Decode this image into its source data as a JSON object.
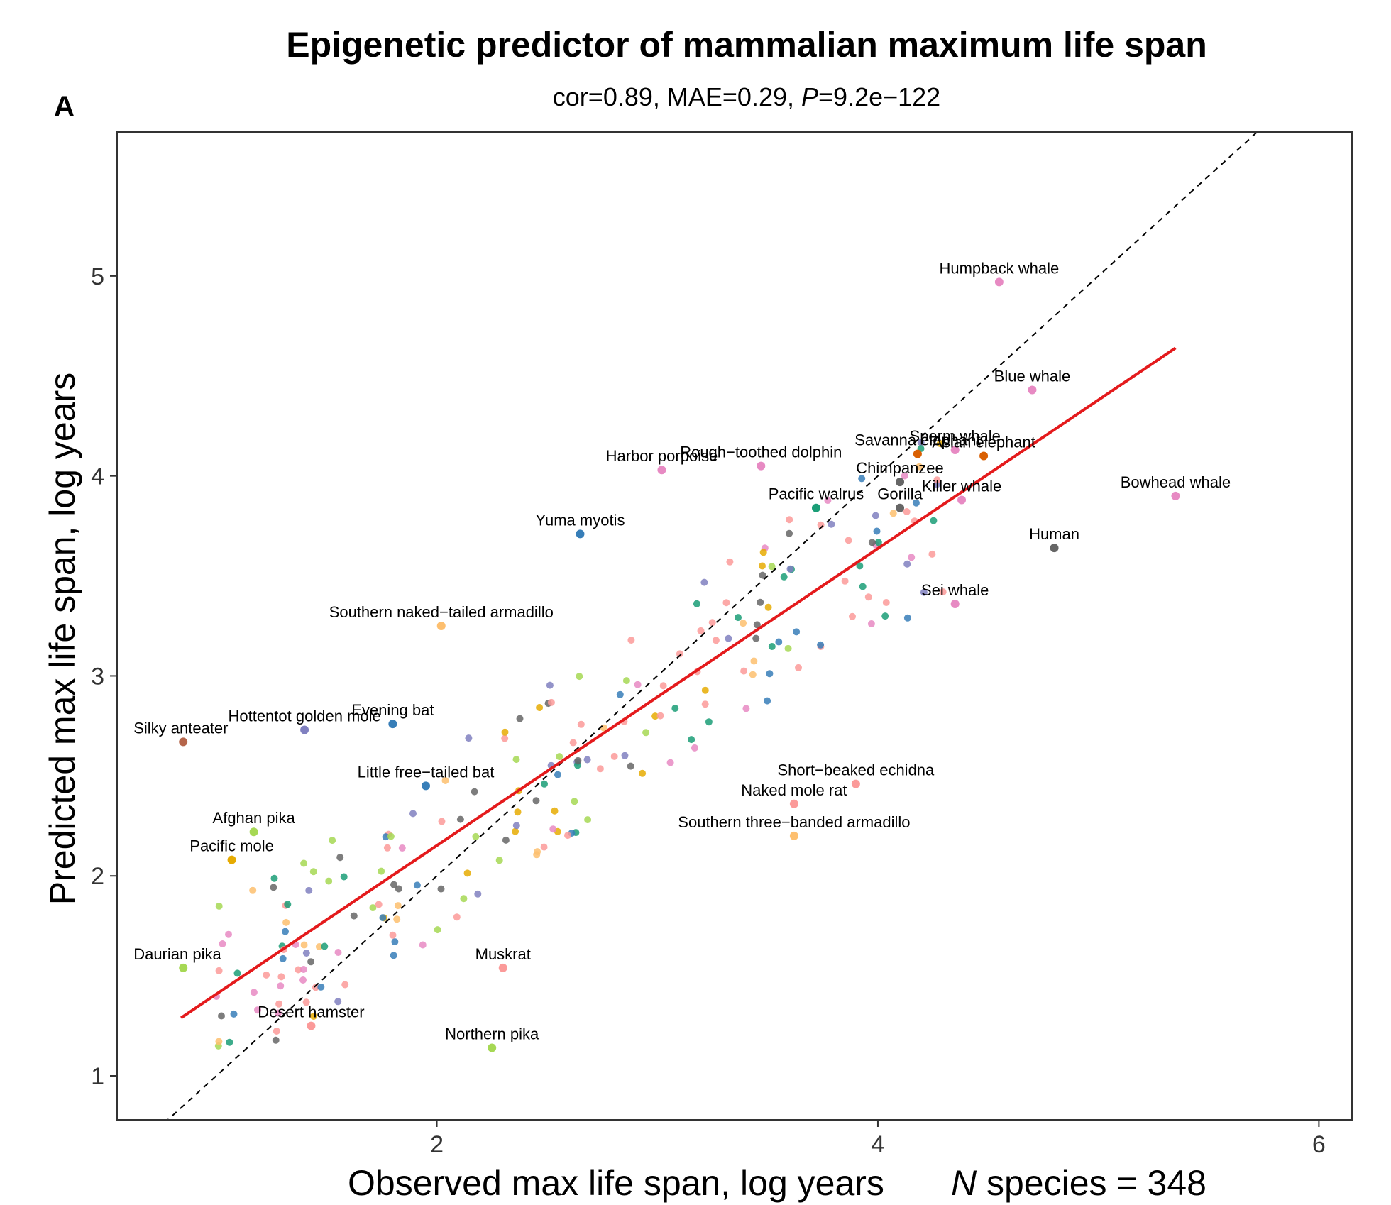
{
  "panel_label": "A",
  "chart_data": {
    "type": "scatter",
    "title": "Epigenetic predictor of mammalian maximum life span",
    "subtitle": {
      "cor_label": "cor=0.89, MAE=0.29, ",
      "p_symbol": "P",
      "p_value": "=9.2e−122"
    },
    "xlabel": "Observed max life span, log years",
    "ylabel": "Predicted max life span, log years",
    "n_species": {
      "symbol": "N",
      "text": " species = 348"
    },
    "xlim": [
      0.55,
      6.15
    ],
    "ylim": [
      0.78,
      5.72
    ],
    "x_ticks": [
      2,
      4,
      6
    ],
    "y_ticks": [
      1,
      2,
      3,
      4,
      5
    ],
    "regression_line": {
      "x": [
        0.84,
        5.35
      ],
      "y": [
        1.29,
        4.64
      ],
      "color": "#e41a1c"
    },
    "identity_line": {
      "slope": 1,
      "intercept": 0,
      "color": "#000000",
      "style": "dashed"
    },
    "labeled_points": [
      {
        "name": "Humpback whale",
        "x": 4.55,
        "y": 4.97,
        "color": "#e78ac3"
      },
      {
        "name": "Blue whale",
        "x": 4.7,
        "y": 4.43,
        "color": "#e78ac3"
      },
      {
        "name": "Sperm whale",
        "x": 4.35,
        "y": 4.13,
        "color": "#e78ac3"
      },
      {
        "name": "Asian elephant",
        "x": 4.48,
        "y": 4.1,
        "color": "#d95f02"
      },
      {
        "name": "Savanna elephant",
        "x": 4.18,
        "y": 4.11,
        "color": "#d95f02"
      },
      {
        "name": "Bowhead whale",
        "x": 5.35,
        "y": 3.9,
        "color": "#e78ac3"
      },
      {
        "name": "Human",
        "x": 4.8,
        "y": 3.64,
        "color": "#666666"
      },
      {
        "name": "Killer whale",
        "x": 4.38,
        "y": 3.88,
        "color": "#e78ac3"
      },
      {
        "name": "Chimpanzee",
        "x": 4.1,
        "y": 3.97,
        "color": "#666666"
      },
      {
        "name": "Gorilla",
        "x": 4.1,
        "y": 3.84,
        "color": "#666666"
      },
      {
        "name": "Pacific walrus",
        "x": 3.72,
        "y": 3.84,
        "color": "#1b9e77"
      },
      {
        "name": "Rough−toothed dolphin",
        "x": 3.47,
        "y": 4.05,
        "color": "#e78ac3"
      },
      {
        "name": "Harbor porpoise",
        "x": 3.02,
        "y": 4.03,
        "color": "#e78ac3"
      },
      {
        "name": "Yuma myotis",
        "x": 2.65,
        "y": 3.71,
        "color": "#377eb8"
      },
      {
        "name": "Southern naked−tailed armadillo",
        "x": 2.02,
        "y": 3.25,
        "color": "#fdbf6f"
      },
      {
        "name": "Hottentot golden mole",
        "x": 1.4,
        "y": 2.73,
        "color": "#8080c0"
      },
      {
        "name": "Silky anteater",
        "x": 0.85,
        "y": 2.67,
        "color": "#b5654a"
      },
      {
        "name": "Evening bat",
        "x": 1.8,
        "y": 2.76,
        "color": "#377eb8"
      },
      {
        "name": "Little free−tailed bat",
        "x": 1.95,
        "y": 2.45,
        "color": "#377eb8"
      },
      {
        "name": "Afghan pika",
        "x": 1.17,
        "y": 2.22,
        "color": "#a6d854"
      },
      {
        "name": "Pacific mole",
        "x": 1.07,
        "y": 2.08,
        "color": "#e6ab02"
      },
      {
        "name": "Daurian pika",
        "x": 0.85,
        "y": 1.54,
        "color": "#a6d854"
      },
      {
        "name": "Desert hamster",
        "x": 1.43,
        "y": 1.25,
        "color": "#fb9a99"
      },
      {
        "name": "Muskrat",
        "x": 2.3,
        "y": 1.54,
        "color": "#fb9a99"
      },
      {
        "name": "Northern pika",
        "x": 2.25,
        "y": 1.14,
        "color": "#a6d854"
      },
      {
        "name": "Sei whale",
        "x": 4.35,
        "y": 3.36,
        "color": "#e78ac3"
      },
      {
        "name": "Short−beaked echidna",
        "x": 3.9,
        "y": 2.46,
        "color": "#fb9a99"
      },
      {
        "name": "Naked mole rat",
        "x": 3.62,
        "y": 2.36,
        "color": "#fb9a99"
      },
      {
        "name": "Southern three−banded armadillo",
        "x": 3.62,
        "y": 2.2,
        "color": "#fdbf6f"
      }
    ],
    "legend": "none"
  }
}
